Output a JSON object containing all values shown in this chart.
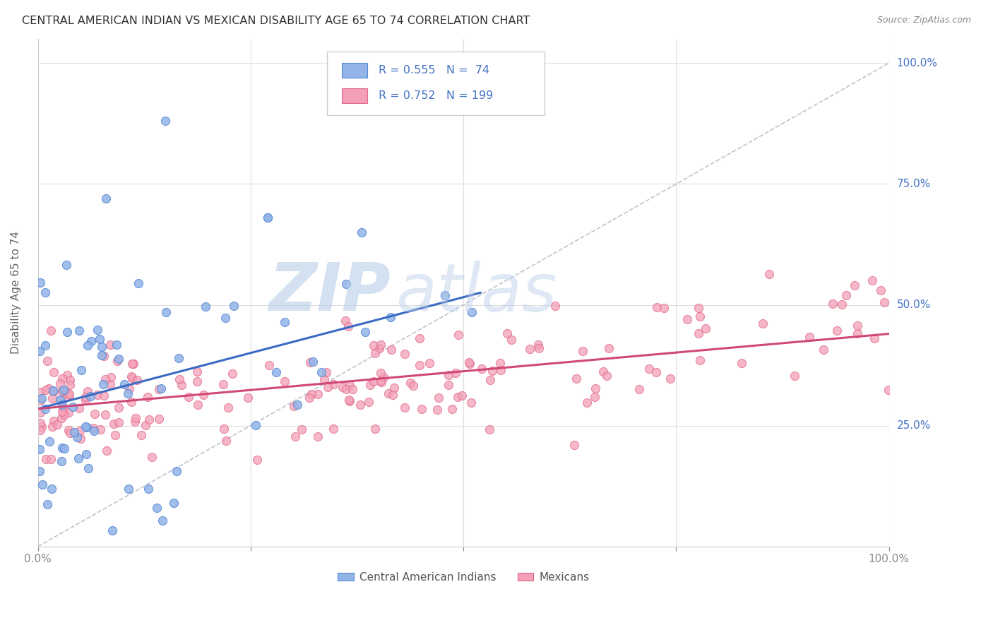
{
  "title": "CENTRAL AMERICAN INDIAN VS MEXICAN DISABILITY AGE 65 TO 74 CORRELATION CHART",
  "source": "Source: ZipAtlas.com",
  "ylabel": "Disability Age 65 to 74",
  "legend_entry1": "Central American Indians",
  "legend_entry2": "Mexicans",
  "r1": "0.555",
  "n1": "74",
  "r2": "0.752",
  "n2": "199",
  "color_blue_fill": "#92B4E8",
  "color_blue_edge": "#5588D4",
  "color_blue_line": "#3B6AC4",
  "color_pink_fill": "#F4A0B8",
  "color_pink_edge": "#E06888",
  "color_pink_line": "#D04878",
  "color_text": "#4472C4",
  "color_axis": "#AAAAAA",
  "color_grid": "#DDDDDD",
  "color_diagonal": "#BBBBCC",
  "watermark_zip_color": "#C8D8F0",
  "watermark_atlas_color": "#C8D8F0",
  "blue_line_x0": 0.0,
  "blue_line_y0": 0.285,
  "blue_line_x1": 0.52,
  "blue_line_y1": 0.525,
  "pink_line_x0": 0.0,
  "pink_line_y0": 0.285,
  "pink_line_x1": 1.0,
  "pink_line_y1": 0.44,
  "xmin": 0.0,
  "xmax": 1.0,
  "ymin": 0.0,
  "ymax": 1.05
}
